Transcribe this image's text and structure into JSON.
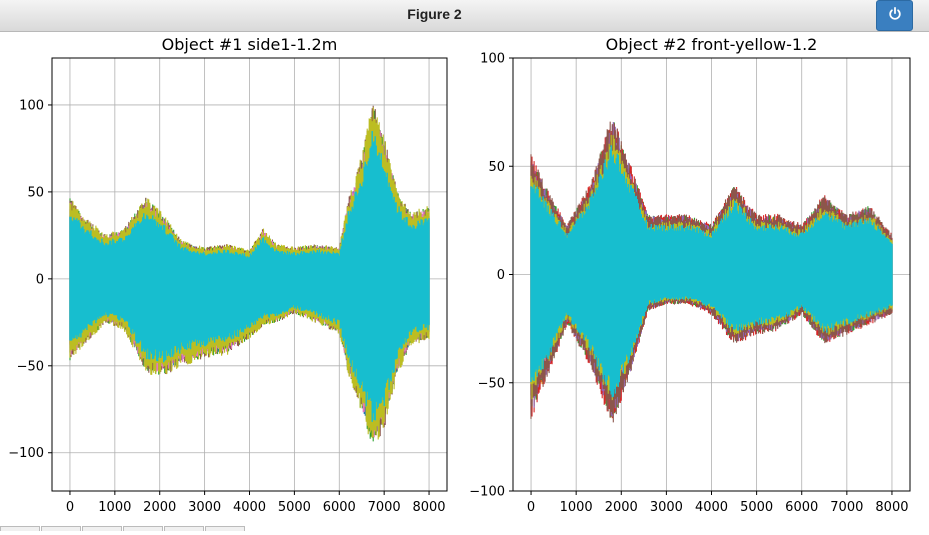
{
  "window": {
    "title": "Figure 2",
    "power_icon": "power-icon"
  },
  "colors": {
    "cycle": [
      "#1f77b4",
      "#ff7f0e",
      "#2ca02c",
      "#d62728",
      "#9467bd",
      "#8c564b",
      "#e377c2",
      "#7f7f7f",
      "#bcbd22",
      "#17becf"
    ],
    "grid": "#b0b0b0",
    "button": "#3a7fc0"
  },
  "chart_data": [
    {
      "type": "line",
      "title": "Object #1 side1-1.2m",
      "xlim": [
        -400,
        8400
      ],
      "ylim": [
        -122,
        127
      ],
      "xticks": [
        0,
        1000,
        2000,
        3000,
        4000,
        5000,
        6000,
        7000,
        8000
      ],
      "yticks": [
        -100,
        -50,
        0,
        50,
        100
      ],
      "xtick_labels": [
        "0",
        "1000",
        "2000",
        "3000",
        "4000",
        "5000",
        "6000",
        "7000",
        "8000"
      ],
      "ytick_labels": [
        "−100",
        "−50",
        "0",
        "50",
        "100"
      ],
      "grid": true,
      "num_series": 10,
      "envelope": {
        "x": [
          0,
          300,
          800,
          1200,
          1700,
          2100,
          2500,
          3000,
          3500,
          4000,
          4300,
          4600,
          5000,
          5500,
          6000,
          6200,
          6500,
          6750,
          7000,
          7300,
          7600,
          8000
        ],
        "upper": [
          52,
          40,
          28,
          32,
          52,
          40,
          24,
          20,
          22,
          18,
          32,
          22,
          20,
          22,
          20,
          50,
          78,
          112,
          90,
          55,
          42,
          46
        ],
        "lower": [
          -52,
          -42,
          -28,
          -32,
          -60,
          -62,
          -55,
          -50,
          -48,
          -38,
          -30,
          -28,
          -22,
          -28,
          -35,
          -60,
          -85,
          -108,
          -95,
          -60,
          -42,
          -38
        ]
      }
    },
    {
      "type": "line",
      "title": "Object #2 front-yellow-1.2",
      "xlim": [
        -400,
        8400
      ],
      "ylim": [
        -100,
        100
      ],
      "xticks": [
        0,
        1000,
        2000,
        3000,
        4000,
        5000,
        6000,
        7000,
        8000
      ],
      "yticks": [
        -100,
        -50,
        0,
        50,
        100
      ],
      "xtick_labels": [
        "0",
        "1000",
        "2000",
        "3000",
        "4000",
        "5000",
        "6000",
        "7000",
        "8000"
      ],
      "ytick_labels": [
        "−100",
        "−50",
        "0",
        "50",
        "100"
      ],
      "grid": true,
      "num_series": 10,
      "envelope": {
        "x": [
          0,
          300,
          800,
          1300,
          1800,
          2200,
          2600,
          3000,
          3500,
          4000,
          4500,
          5000,
          5500,
          6000,
          6500,
          7000,
          7500,
          8000
        ],
        "upper": [
          60,
          45,
          25,
          45,
          80,
          55,
          30,
          30,
          30,
          25,
          45,
          30,
          30,
          25,
          40,
          30,
          35,
          20
        ],
        "lower": [
          -72,
          -55,
          -25,
          -45,
          -75,
          -50,
          -18,
          -15,
          -15,
          -20,
          -35,
          -30,
          -28,
          -20,
          -35,
          -30,
          -25,
          -20
        ]
      }
    }
  ]
}
